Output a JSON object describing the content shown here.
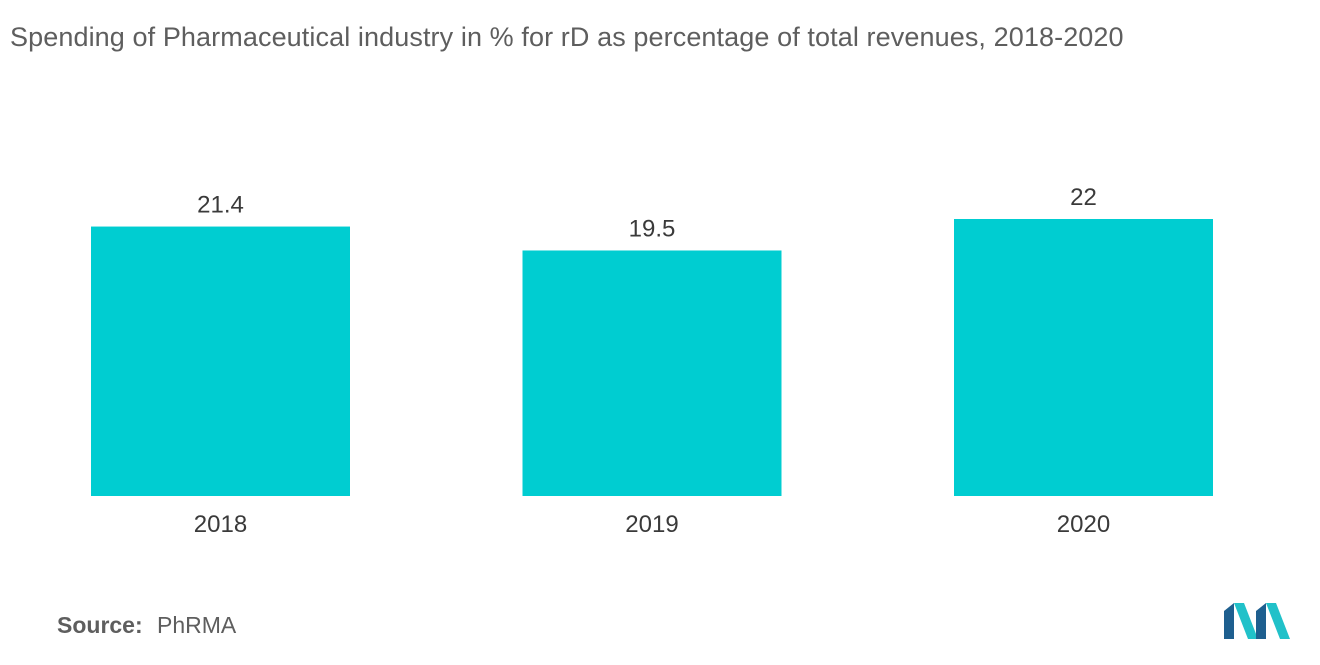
{
  "chart_data": {
    "type": "bar",
    "title": "Spending of Pharmaceutical industry in % for rD as  percentage of total revenues, 2018-2020",
    "categories": [
      "2018",
      "2019",
      "2020"
    ],
    "values": [
      21.4,
      19.5,
      22
    ],
    "value_labels": [
      "21.4",
      "19.5",
      "22"
    ],
    "xlabel": "",
    "ylabel": "",
    "ylim": [
      0,
      22
    ],
    "grid": false,
    "bar_color": "#00cdd1"
  },
  "source": {
    "label": "Source:",
    "value": "PhRMA"
  },
  "logo": {
    "icon": "mordor-intelligence-logo",
    "colors": [
      "#1e5f8f",
      "#21c1c9"
    ]
  }
}
